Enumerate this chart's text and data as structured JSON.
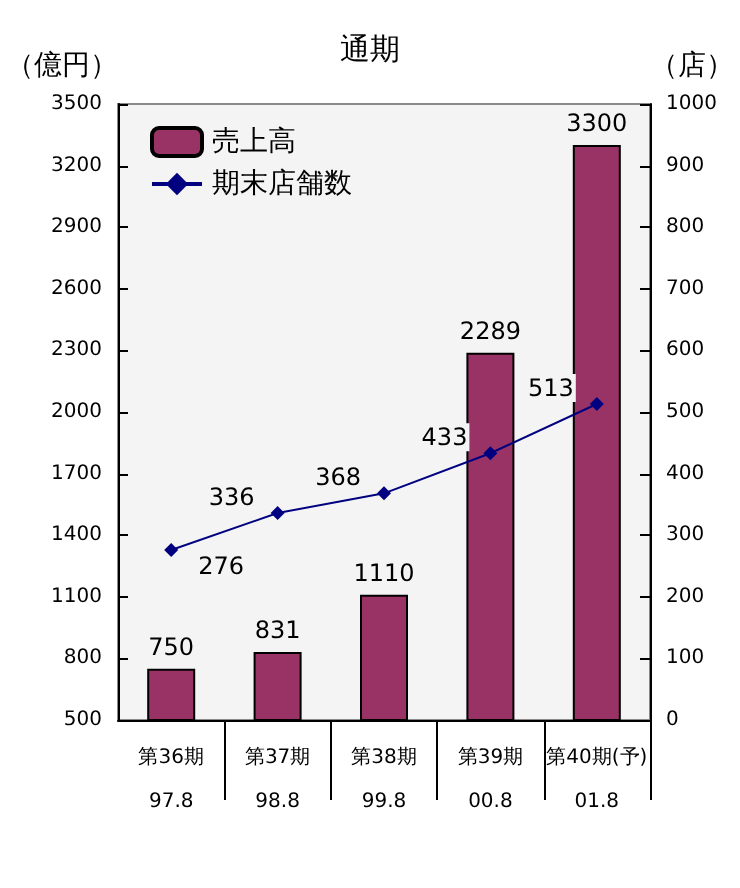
{
  "chart_data": {
    "type": "bar",
    "title": "通期",
    "ylabel": "（億円）",
    "y2label": "（店）",
    "categories": [
      "第36期\n97.8",
      "第37期\n98.8",
      "第38期\n99.8",
      "第39期\n00.8",
      "第40期(予)\n01.8"
    ],
    "series": [
      {
        "name": "売上高",
        "type": "bar",
        "color": "#993366",
        "values": [
          750,
          831,
          1110,
          2289,
          3300
        ]
      },
      {
        "name": "期末店舗数",
        "type": "line",
        "axis": "y2",
        "color": "#000080",
        "marker": "diamond",
        "values": [
          276,
          336,
          368,
          433,
          513
        ]
      }
    ],
    "ylim": [
      500,
      3500
    ],
    "yticks": [
      500,
      800,
      1100,
      1400,
      1700,
      2000,
      2300,
      2600,
      2900,
      3200,
      3500
    ],
    "y2lim": [
      0,
      1000
    ],
    "y2ticks": [
      0,
      100,
      200,
      300,
      400,
      500,
      600,
      700,
      800,
      900,
      1000
    ],
    "data_labels": true,
    "legend": "top left",
    "grid": false
  }
}
